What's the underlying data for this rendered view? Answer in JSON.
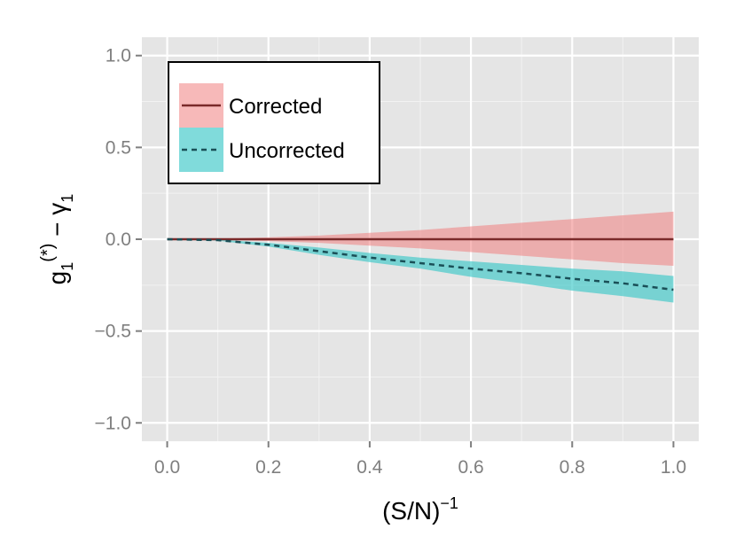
{
  "chart_data": {
    "type": "area",
    "xlabel": "(S/N)",
    "xlabel_sup": "−1",
    "ylabel_parts": {
      "g": "g",
      "sub1": "1",
      "sup": "(*)",
      "minus": " − γ",
      "sub2": "1"
    },
    "xlim": [
      -0.05,
      1.05
    ],
    "ylim": [
      -1.1,
      1.1
    ],
    "x_ticks": [
      0.0,
      0.2,
      0.4,
      0.6,
      0.8,
      1.0
    ],
    "x_tick_labels": [
      "0.0",
      "0.2",
      "0.4",
      "0.6",
      "0.8",
      "1.0"
    ],
    "y_ticks": [
      -1.0,
      -0.5,
      0.0,
      0.5,
      1.0
    ],
    "y_tick_labels": [
      "−1.0",
      "−0.5",
      "0.0",
      "0.5",
      "1.0"
    ],
    "grid": true,
    "legend_position": "top-left",
    "x": [
      0.0,
      0.1,
      0.2,
      0.3,
      0.4,
      0.5,
      0.6,
      0.7,
      0.8,
      0.9,
      1.0
    ],
    "series": [
      {
        "name": "Corrected",
        "line_color": "#7a2a2a",
        "fill_color": "#f08080",
        "dash": "solid",
        "y": [
          0.0,
          0.0,
          0.0,
          0.0,
          0.0,
          0.0,
          0.0,
          0.0,
          0.0,
          0.0,
          0.0
        ],
        "lower": [
          0.0,
          -0.003,
          -0.01,
          -0.02,
          -0.035,
          -0.05,
          -0.07,
          -0.09,
          -0.11,
          -0.13,
          -0.145
        ],
        "upper": [
          0.0,
          0.003,
          0.01,
          0.02,
          0.035,
          0.05,
          0.07,
          0.09,
          0.11,
          0.13,
          0.15
        ]
      },
      {
        "name": "Uncorrected",
        "line_color": "#1a4f57",
        "fill_color": "#3cc8c8",
        "dash": "dashed",
        "y": [
          0.0,
          -0.005,
          -0.03,
          -0.065,
          -0.1,
          -0.13,
          -0.16,
          -0.185,
          -0.215,
          -0.24,
          -0.275
        ],
        "lower": [
          0.0,
          -0.008,
          -0.04,
          -0.085,
          -0.125,
          -0.16,
          -0.205,
          -0.24,
          -0.28,
          -0.31,
          -0.345
        ],
        "upper": [
          0.0,
          -0.002,
          -0.02,
          -0.045,
          -0.075,
          -0.1,
          -0.12,
          -0.14,
          -0.16,
          -0.175,
          -0.2
        ]
      }
    ]
  }
}
